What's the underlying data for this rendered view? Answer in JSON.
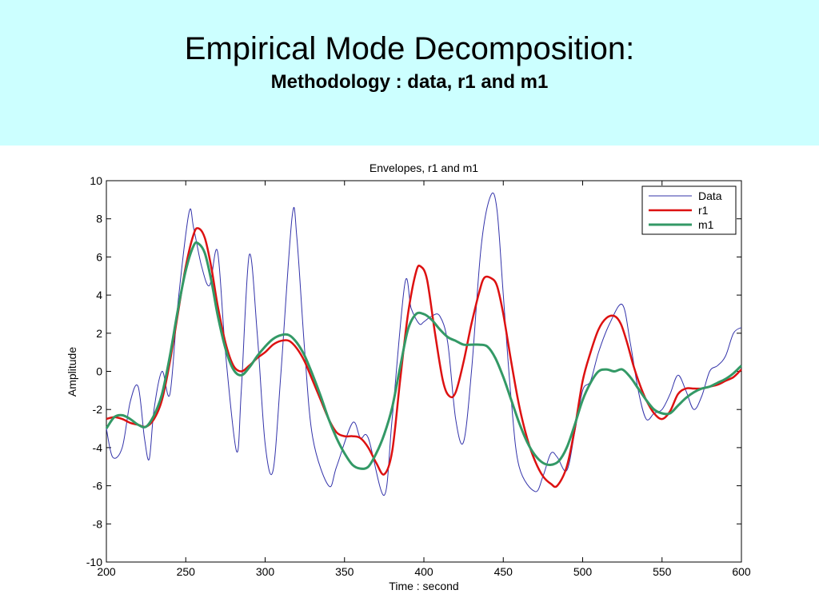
{
  "slide": {
    "title": "Empirical Mode Decomposition:",
    "subtitle": "Methodology : data, r1 and m1",
    "header_color": "#ccffff"
  },
  "chart_data": {
    "type": "line",
    "title": "Envelopes, r1 and m1",
    "xlabel": "Time : second",
    "ylabel": "Amplitude",
    "xlim": [
      200,
      600
    ],
    "ylim": [
      -10,
      10
    ],
    "xticks": [
      200,
      250,
      300,
      350,
      400,
      450,
      500,
      550,
      600
    ],
    "yticks": [
      -10,
      -8,
      -6,
      -4,
      -2,
      0,
      2,
      4,
      6,
      8,
      10
    ],
    "grid": false,
    "legend_position": "top-right",
    "series": [
      {
        "name": "Data",
        "color": "#3333aa",
        "x": [
          200,
          204,
          210,
          215,
          220,
          224,
          227,
          230,
          235,
          240,
          245,
          252,
          255,
          260,
          265,
          270,
          275,
          282,
          285,
          290,
          295,
          300,
          305,
          310,
          317,
          320,
          325,
          330,
          340,
          345,
          355,
          360,
          365,
          375,
          380,
          388,
          392,
          397,
          400,
          405,
          410,
          415,
          420,
          425,
          430,
          436,
          442,
          446,
          450,
          455,
          460,
          470,
          475,
          480,
          484,
          490,
          495,
          500,
          505,
          510,
          517,
          525,
          530,
          535,
          540,
          545,
          550,
          555,
          560,
          565,
          570,
          575,
          580,
          585,
          590,
          595,
          600
        ],
        "y": [
          -3.0,
          -4.5,
          -4.0,
          -1.6,
          -0.8,
          -3.5,
          -4.6,
          -2.0,
          0.0,
          -1.2,
          3.5,
          8.3,
          7.5,
          5.5,
          4.5,
          6.3,
          1.0,
          -4.2,
          -1.0,
          6.1,
          2.0,
          -3.8,
          -5.2,
          0.0,
          8.1,
          7.0,
          1.0,
          -3.5,
          -6.0,
          -5.0,
          -2.7,
          -3.5,
          -3.5,
          -6.5,
          -2.5,
          4.6,
          3.3,
          2.5,
          2.6,
          2.9,
          2.9,
          1.5,
          -2.5,
          -3.7,
          0.0,
          6.5,
          9.2,
          8.5,
          4.0,
          -1.5,
          -5.0,
          -6.3,
          -5.5,
          -4.3,
          -4.5,
          -5.2,
          -3.2,
          -1.0,
          -0.5,
          1.0,
          2.5,
          3.5,
          1.5,
          -1.0,
          -2.5,
          -2.2,
          -2.0,
          -1.2,
          -0.2,
          -1.0,
          -2.0,
          -1.3,
          0.0,
          0.3,
          0.8,
          2.0,
          2.3
        ]
      },
      {
        "name": "r1",
        "color": "#dd1111",
        "x": [
          200,
          205,
          210,
          215,
          220,
          225,
          230,
          235,
          240,
          245,
          250,
          255,
          258,
          262,
          266,
          270,
          275,
          280,
          285,
          290,
          295,
          300,
          305,
          310,
          315,
          320,
          325,
          330,
          335,
          340,
          345,
          350,
          355,
          360,
          365,
          370,
          375,
          380,
          385,
          390,
          395,
          398,
          402,
          407,
          412,
          416,
          420,
          425,
          430,
          435,
          438,
          442,
          446,
          450,
          455,
          460,
          465,
          470,
          475,
          480,
          484,
          490,
          495,
          500,
          505,
          510,
          515,
          520,
          524,
          528,
          532,
          536,
          540,
          545,
          550,
          555,
          560,
          565,
          570,
          575,
          580,
          585,
          590,
          595,
          600
        ],
        "y": [
          -2.5,
          -2.4,
          -2.5,
          -2.7,
          -2.8,
          -2.9,
          -2.5,
          -1.5,
          0.5,
          3.0,
          5.5,
          7.2,
          7.5,
          7.0,
          5.5,
          3.5,
          1.5,
          0.3,
          0.0,
          0.3,
          0.7,
          1.0,
          1.4,
          1.6,
          1.6,
          1.2,
          0.5,
          -0.5,
          -1.5,
          -2.5,
          -3.2,
          -3.4,
          -3.4,
          -3.5,
          -4.0,
          -4.8,
          -5.4,
          -4.2,
          -0.5,
          3.0,
          5.2,
          5.5,
          4.8,
          2.0,
          -0.5,
          -1.3,
          -1.1,
          0.5,
          2.5,
          4.2,
          4.9,
          4.9,
          4.5,
          3.0,
          0.5,
          -1.8,
          -3.5,
          -4.7,
          -5.5,
          -5.9,
          -6.0,
          -5.0,
          -3.0,
          -0.5,
          1.0,
          2.2,
          2.8,
          2.9,
          2.5,
          1.5,
          0.3,
          -0.7,
          -1.5,
          -2.2,
          -2.5,
          -2.1,
          -1.2,
          -0.9,
          -0.9,
          -0.9,
          -0.8,
          -0.7,
          -0.5,
          -0.3,
          0.1
        ]
      },
      {
        "name": "m1",
        "color": "#339966",
        "x": [
          200,
          205,
          210,
          215,
          220,
          225,
          230,
          235,
          240,
          245,
          250,
          255,
          258,
          262,
          266,
          270,
          275,
          280,
          285,
          290,
          295,
          300,
          305,
          310,
          315,
          320,
          325,
          330,
          335,
          340,
          345,
          350,
          355,
          360,
          365,
          370,
          375,
          380,
          385,
          390,
          395,
          400,
          405,
          410,
          415,
          420,
          425,
          430,
          435,
          440,
          445,
          450,
          455,
          460,
          465,
          470,
          475,
          480,
          485,
          490,
          495,
          500,
          505,
          510,
          515,
          520,
          525,
          530,
          535,
          540,
          545,
          550,
          555,
          560,
          565,
          570,
          575,
          580,
          585,
          590,
          595,
          600
        ],
        "y": [
          -3.0,
          -2.4,
          -2.3,
          -2.5,
          -2.8,
          -2.9,
          -2.3,
          -1.2,
          0.8,
          3.2,
          5.3,
          6.6,
          6.7,
          6.2,
          4.8,
          3.0,
          1.2,
          0.1,
          -0.2,
          0.2,
          0.8,
          1.3,
          1.7,
          1.9,
          1.9,
          1.5,
          0.8,
          -0.2,
          -1.3,
          -2.5,
          -3.5,
          -4.3,
          -4.9,
          -5.1,
          -5.0,
          -4.3,
          -3.3,
          -1.9,
          0.2,
          2.2,
          3.0,
          3.0,
          2.7,
          2.2,
          1.8,
          1.6,
          1.4,
          1.4,
          1.4,
          1.3,
          0.7,
          -0.3,
          -1.5,
          -2.7,
          -3.7,
          -4.4,
          -4.8,
          -4.9,
          -4.7,
          -4.0,
          -2.8,
          -1.5,
          -0.6,
          0.0,
          0.1,
          0.0,
          0.1,
          -0.3,
          -0.9,
          -1.5,
          -2.0,
          -2.2,
          -2.2,
          -1.8,
          -1.4,
          -1.1,
          -0.9,
          -0.8,
          -0.6,
          -0.4,
          -0.1,
          0.3
        ]
      }
    ]
  }
}
